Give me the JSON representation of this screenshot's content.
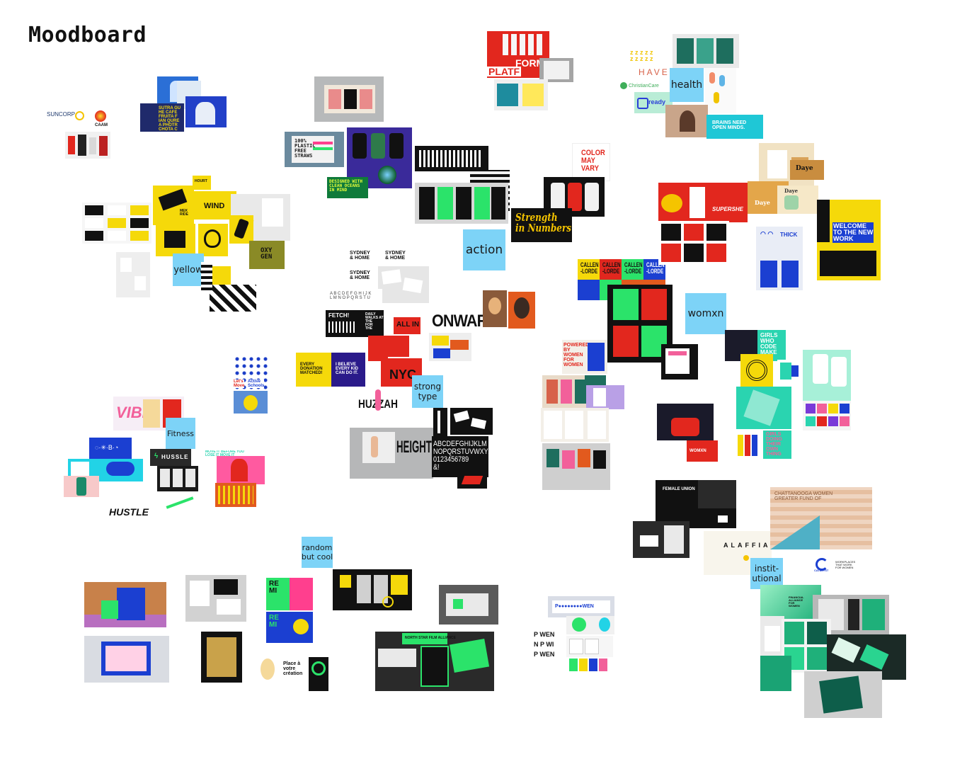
{
  "board": {
    "title": "Moodboard"
  },
  "clusters": [
    {
      "key": "yellow",
      "label": "yellow"
    },
    {
      "key": "action",
      "label": "action"
    },
    {
      "key": "health",
      "label": "health"
    },
    {
      "key": "womxn",
      "label": "womxn"
    },
    {
      "key": "strong_type",
      "label": "strong\ntype"
    },
    {
      "key": "fitness",
      "label": "Fitness"
    },
    {
      "key": "random",
      "label": "random\nbut cool"
    },
    {
      "key": "institutional",
      "label": "instit-\nutional"
    }
  ],
  "tile_text": {
    "suncorp": "SUNCORP",
    "caam": "CAAM",
    "platf": "PLATF",
    "form": "FORM",
    "haven": "HAVEN",
    "christiancare": "ChristianCare",
    "ready": "ready",
    "brains": "BRAINS NEED\nOPEN MINDS.",
    "color": "COLOR\nMAY\nVARY",
    "strength": "Strength\nin Numbers",
    "plastic": "100%\nPLASTIC\nFREE\nSTRAWS",
    "designed": "DESIGNED WITH\nCLEAN OCEANS\nIN MIND",
    "wind": "WIND",
    "oxygen": "OXY\nGEN",
    "supershe": "SUPERSHE",
    "daye": "Daye",
    "thick": "THICK",
    "welcome": "WELCOME\nTO THE NEW\nWORK",
    "sydney": "SYDNEY\n& HOME",
    "fetch": "FETCH!",
    "allin": "ALL IN",
    "onward": "ONWARD",
    "every_donation": "EVERY\nDONATION\nMATCHED!",
    "believe": "I BELIEVE\nEVERY KID\nCAN DO IT.",
    "nyc": "NYC",
    "huzzah": "HUZZAH",
    "heights": "HEIGHTS",
    "alphabet": "ABCDEFGHIJKLM\nNOPQRSTUVWXYZ\n0123456789\n&!",
    "callen": "CALLEN\n-LORDE",
    "powered": "POWERED\nBY\nWOMEN\nFOR\nWOMEN",
    "girls_code": "GIRLS\nWHO\nCODE\nMAKE",
    "girls_doing": "GIRLS\nDOING\nTHEIR\nOWN\nTHING",
    "womxn_shop": "WOMXN",
    "lets_move": "Let's\nMove",
    "active_schools": "Active\nSchools",
    "vibe": "VIBE",
    "hussle": "HUSSLE",
    "hustle": "HUSTLE",
    "female_union": "FEMALE UNION",
    "alaffia": "ALAFFIA",
    "catalyst": "CATALYST",
    "workplaces": "WORKPLACES\nTHAT WORK\nFOR WOMEN",
    "financial": "FINANCIAL\nALLIANCE\nFOR\nWOMEN",
    "north_star": "NORTH STAR FILM ALLIANCE",
    "place": "Place à\nvotre\ncréation",
    "powen": "P WEN",
    "remix": "RE\nMI"
  },
  "colors": {
    "sticky": "#7dd3f7",
    "yellow": "#f5d90a",
    "black": "#0b0b0b",
    "red": "#e2271e",
    "green": "#2be36a",
    "teal": "#1fd0a0",
    "blue": "#1b3fd1",
    "navy": "#2a1a8a",
    "pink": "#f2609a"
  }
}
